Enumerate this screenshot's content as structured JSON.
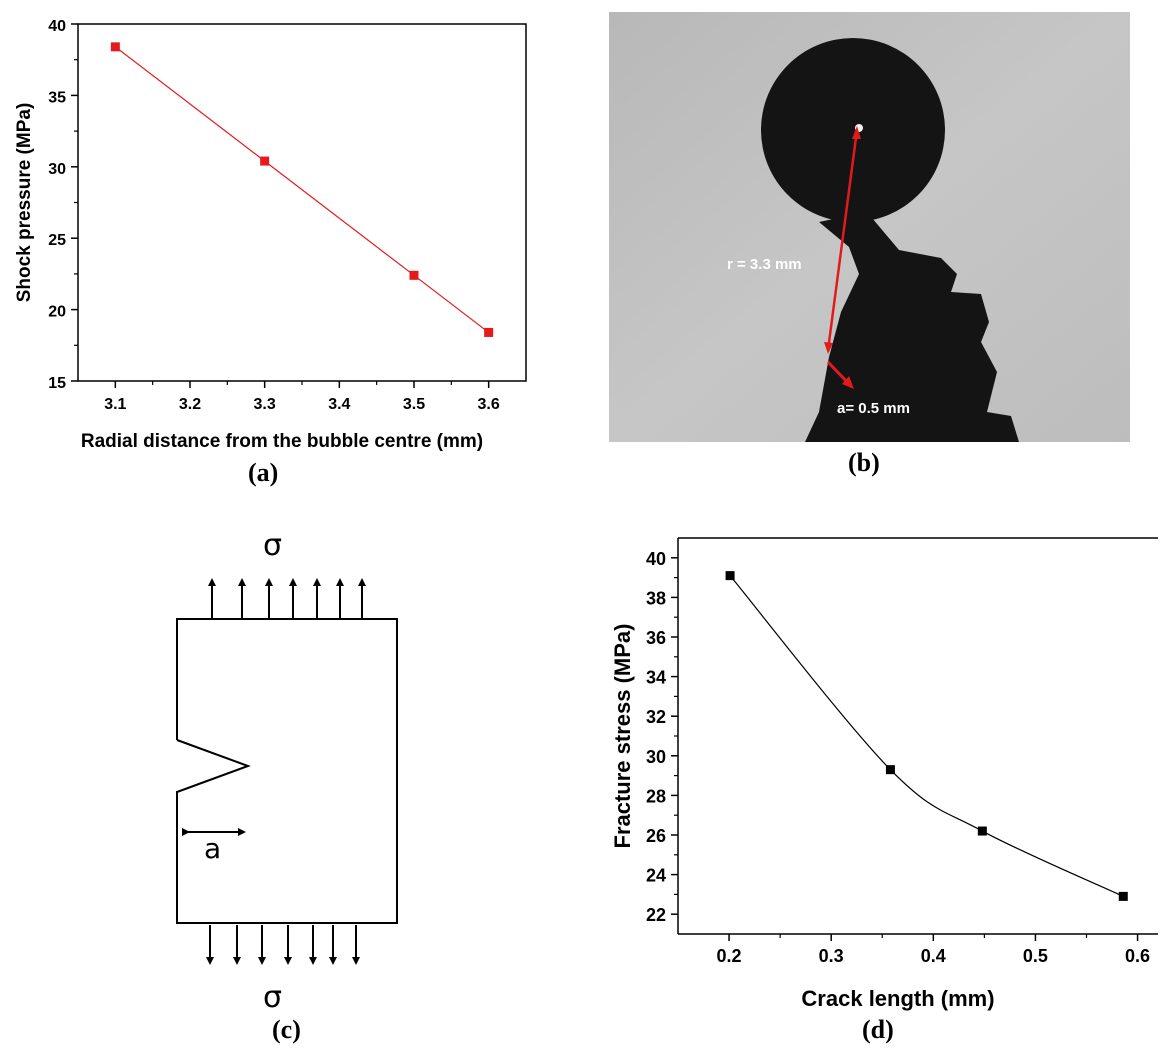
{
  "panel_labels": {
    "a": "(a)",
    "b": "(b)",
    "c": "(c)",
    "d": "(d)"
  },
  "chart_data": [
    {
      "type": "line",
      "title": "",
      "xlabel": "Radial distance from the bubble centre (mm)",
      "ylabel": "Shock pressure (MPa)",
      "xlim": [
        3.05,
        3.65
      ],
      "ylim": [
        15,
        40
      ],
      "xticks": [
        "3.1",
        "3.2",
        "3.3",
        "3.4",
        "3.5",
        "3.6"
      ],
      "yticks": [
        "15",
        "20",
        "25",
        "30",
        "35",
        "40"
      ],
      "series": [
        {
          "x": [
            3.1,
            3.3,
            3.5,
            3.6
          ],
          "y": [
            38.4,
            30.4,
            22.4,
            18.4
          ],
          "color": "#e41a1c",
          "marker": "square"
        }
      ],
      "grid": false
    },
    {
      "type": "line",
      "title": "",
      "xlabel": "Crack length (mm)",
      "ylabel": "Fracture stress (MPa)",
      "xlim": [
        0.15,
        0.62
      ],
      "ylim": [
        21,
        41
      ],
      "xticks": [
        "0.2",
        "0.3",
        "0.4",
        "0.5",
        "0.6"
      ],
      "yticks": [
        "22",
        "24",
        "26",
        "28",
        "30",
        "32",
        "34",
        "36",
        "38",
        "40"
      ],
      "series": [
        {
          "x": [
            0.201,
            0.358,
            0.448,
            0.586
          ],
          "y": [
            39.1,
            29.3,
            26.2,
            22.9
          ],
          "color": "#000000",
          "marker": "square"
        }
      ],
      "grid": false
    }
  ],
  "photo": {
    "radius_label": "r = 3.3 mm",
    "crack_label": "a= 0.5 mm"
  },
  "diagram": {
    "top_sigma": "σ",
    "bottom_sigma": "σ",
    "crack_label": "a"
  }
}
